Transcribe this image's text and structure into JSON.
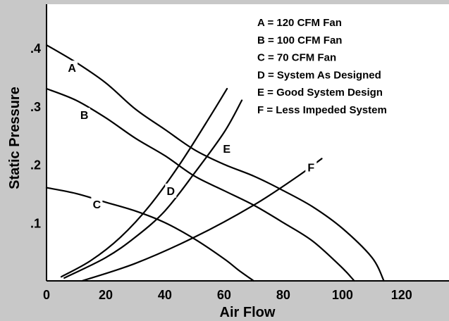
{
  "chart_data": {
    "type": "line",
    "xlabel": "Air Flow",
    "ylabel": "Static Pressure",
    "xlim": [
      0,
      136
    ],
    "ylim": [
      0,
      0.475
    ],
    "xticks": [
      {
        "value": 0,
        "label": "0"
      },
      {
        "value": 20,
        "label": "20"
      },
      {
        "value": 40,
        "label": "40"
      },
      {
        "value": 60,
        "label": "60"
      },
      {
        "value": 80,
        "label": "80"
      },
      {
        "value": 100,
        "label": "100"
      },
      {
        "value": 120,
        "label": "120"
      }
    ],
    "yticks": [
      {
        "value": 0.1,
        "label": ".1"
      },
      {
        "value": 0.2,
        "label": ".2"
      },
      {
        "value": 0.3,
        "label": ".3"
      },
      {
        "value": 0.4,
        "label": ".4"
      }
    ],
    "legend": [
      "A = 120 CFM Fan",
      "B = 100 CFM Fan",
      "C = 70 CFM Fan",
      "D = System As Designed",
      "E = Good System Design",
      "F = Less Impeded System"
    ],
    "series": [
      {
        "name": "A",
        "label_at": [
          8.6,
          0.366
        ],
        "points": [
          [
            0,
            0.405
          ],
          [
            10,
            0.375
          ],
          [
            20,
            0.34
          ],
          [
            30,
            0.295
          ],
          [
            40,
            0.26
          ],
          [
            50,
            0.225
          ],
          [
            60,
            0.2
          ],
          [
            70,
            0.18
          ],
          [
            80,
            0.155
          ],
          [
            90,
            0.127
          ],
          [
            100,
            0.09
          ],
          [
            110,
            0.04
          ],
          [
            114,
            0
          ]
        ]
      },
      {
        "name": "B",
        "label_at": [
          12.8,
          0.285
        ],
        "points": [
          [
            0,
            0.33
          ],
          [
            10,
            0.31
          ],
          [
            20,
            0.28
          ],
          [
            30,
            0.245
          ],
          [
            40,
            0.215
          ],
          [
            50,
            0.18
          ],
          [
            60,
            0.155
          ],
          [
            70,
            0.13
          ],
          [
            80,
            0.1
          ],
          [
            90,
            0.068
          ],
          [
            100,
            0.022
          ],
          [
            104,
            0
          ]
        ]
      },
      {
        "name": "C",
        "label_at": [
          17,
          0.132
        ],
        "points": [
          [
            0,
            0.16
          ],
          [
            10,
            0.15
          ],
          [
            20,
            0.135
          ],
          [
            30,
            0.12
          ],
          [
            40,
            0.1
          ],
          [
            50,
            0.072
          ],
          [
            60,
            0.038
          ],
          [
            65,
            0.018
          ],
          [
            70,
            0
          ]
        ]
      },
      {
        "name": "D",
        "label_at": [
          42,
          0.155
        ],
        "points": [
          [
            5,
            0.007
          ],
          [
            15,
            0.035
          ],
          [
            25,
            0.075
          ],
          [
            35,
            0.13
          ],
          [
            45,
            0.2
          ],
          [
            55,
            0.28
          ],
          [
            61,
            0.33
          ]
        ]
      },
      {
        "name": "E",
        "label_at": [
          60.9,
          0.227
        ],
        "points": [
          [
            6,
            0.005
          ],
          [
            20,
            0.04
          ],
          [
            30,
            0.075
          ],
          [
            40,
            0.12
          ],
          [
            50,
            0.185
          ],
          [
            60,
            0.255
          ],
          [
            66,
            0.31
          ]
        ]
      },
      {
        "name": "F",
        "label_at": [
          89.4,
          0.195
        ],
        "points": [
          [
            12,
            0
          ],
          [
            30,
            0.03
          ],
          [
            50,
            0.075
          ],
          [
            70,
            0.13
          ],
          [
            85,
            0.18
          ],
          [
            93,
            0.21
          ]
        ]
      }
    ]
  }
}
